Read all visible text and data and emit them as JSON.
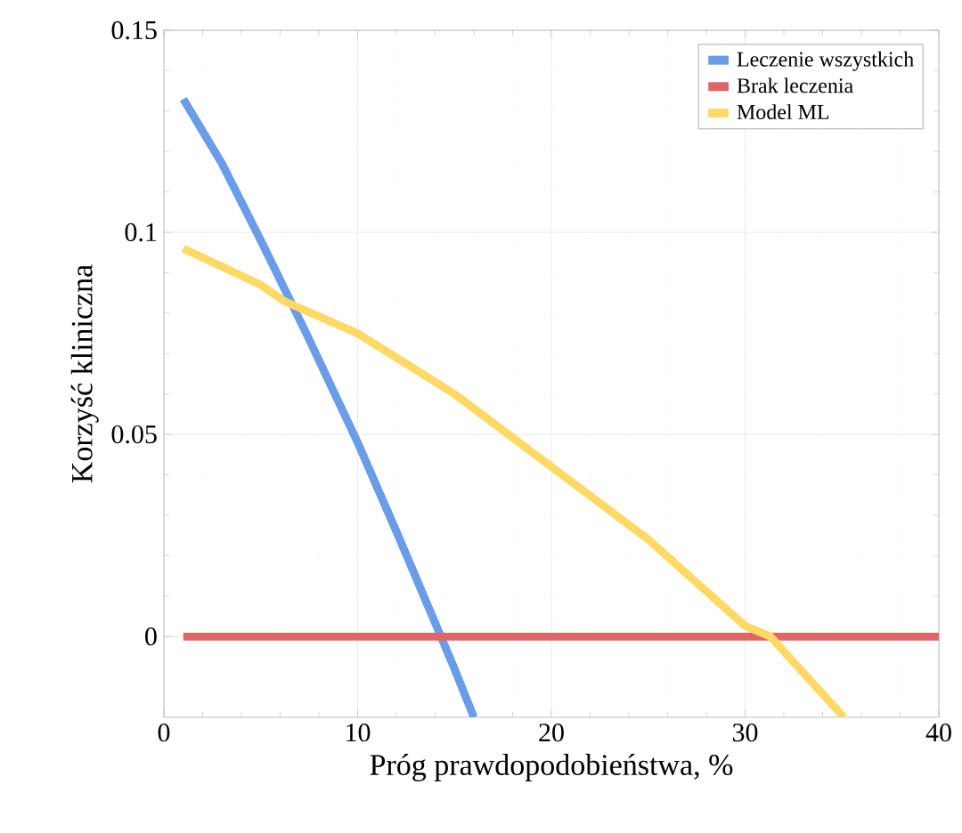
{
  "chart_data": {
    "type": "line",
    "xlabel": "Próg prawdopodobieństwa, %",
    "ylabel": "Korzyść kliniczna",
    "xlim": [
      0,
      40
    ],
    "ylim": [
      -0.02,
      0.15
    ],
    "xticks": [
      0,
      10,
      20,
      30,
      40
    ],
    "yticks": [
      0,
      0.05,
      0.1,
      0.15
    ],
    "grid": true,
    "legend": "top right",
    "line_style": "solid",
    "marker": "none",
    "series": [
      {
        "name": "Leczenie wszystkich",
        "color": "#6a9de8",
        "x": [
          1,
          3,
          5,
          7.4,
          10,
          12,
          14.3,
          15,
          16
        ],
        "values": [
          0.133,
          0.117,
          0.098,
          0.0745,
          0.048,
          0.026,
          0,
          -0.008,
          -0.02
        ]
      },
      {
        "name": "Brak leczenia",
        "color": "#e06666",
        "x": [
          1,
          40
        ],
        "values": [
          0,
          0
        ]
      },
      {
        "name": "Model ML",
        "color": "#ffd966",
        "x": [
          1,
          5,
          6.2,
          10,
          15,
          20,
          25,
          30,
          31.3,
          35.1
        ],
        "values": [
          0.096,
          0.087,
          0.083,
          0.075,
          0.06,
          0.042,
          0.024,
          0.0026,
          0,
          -0.02
        ]
      }
    ]
  }
}
